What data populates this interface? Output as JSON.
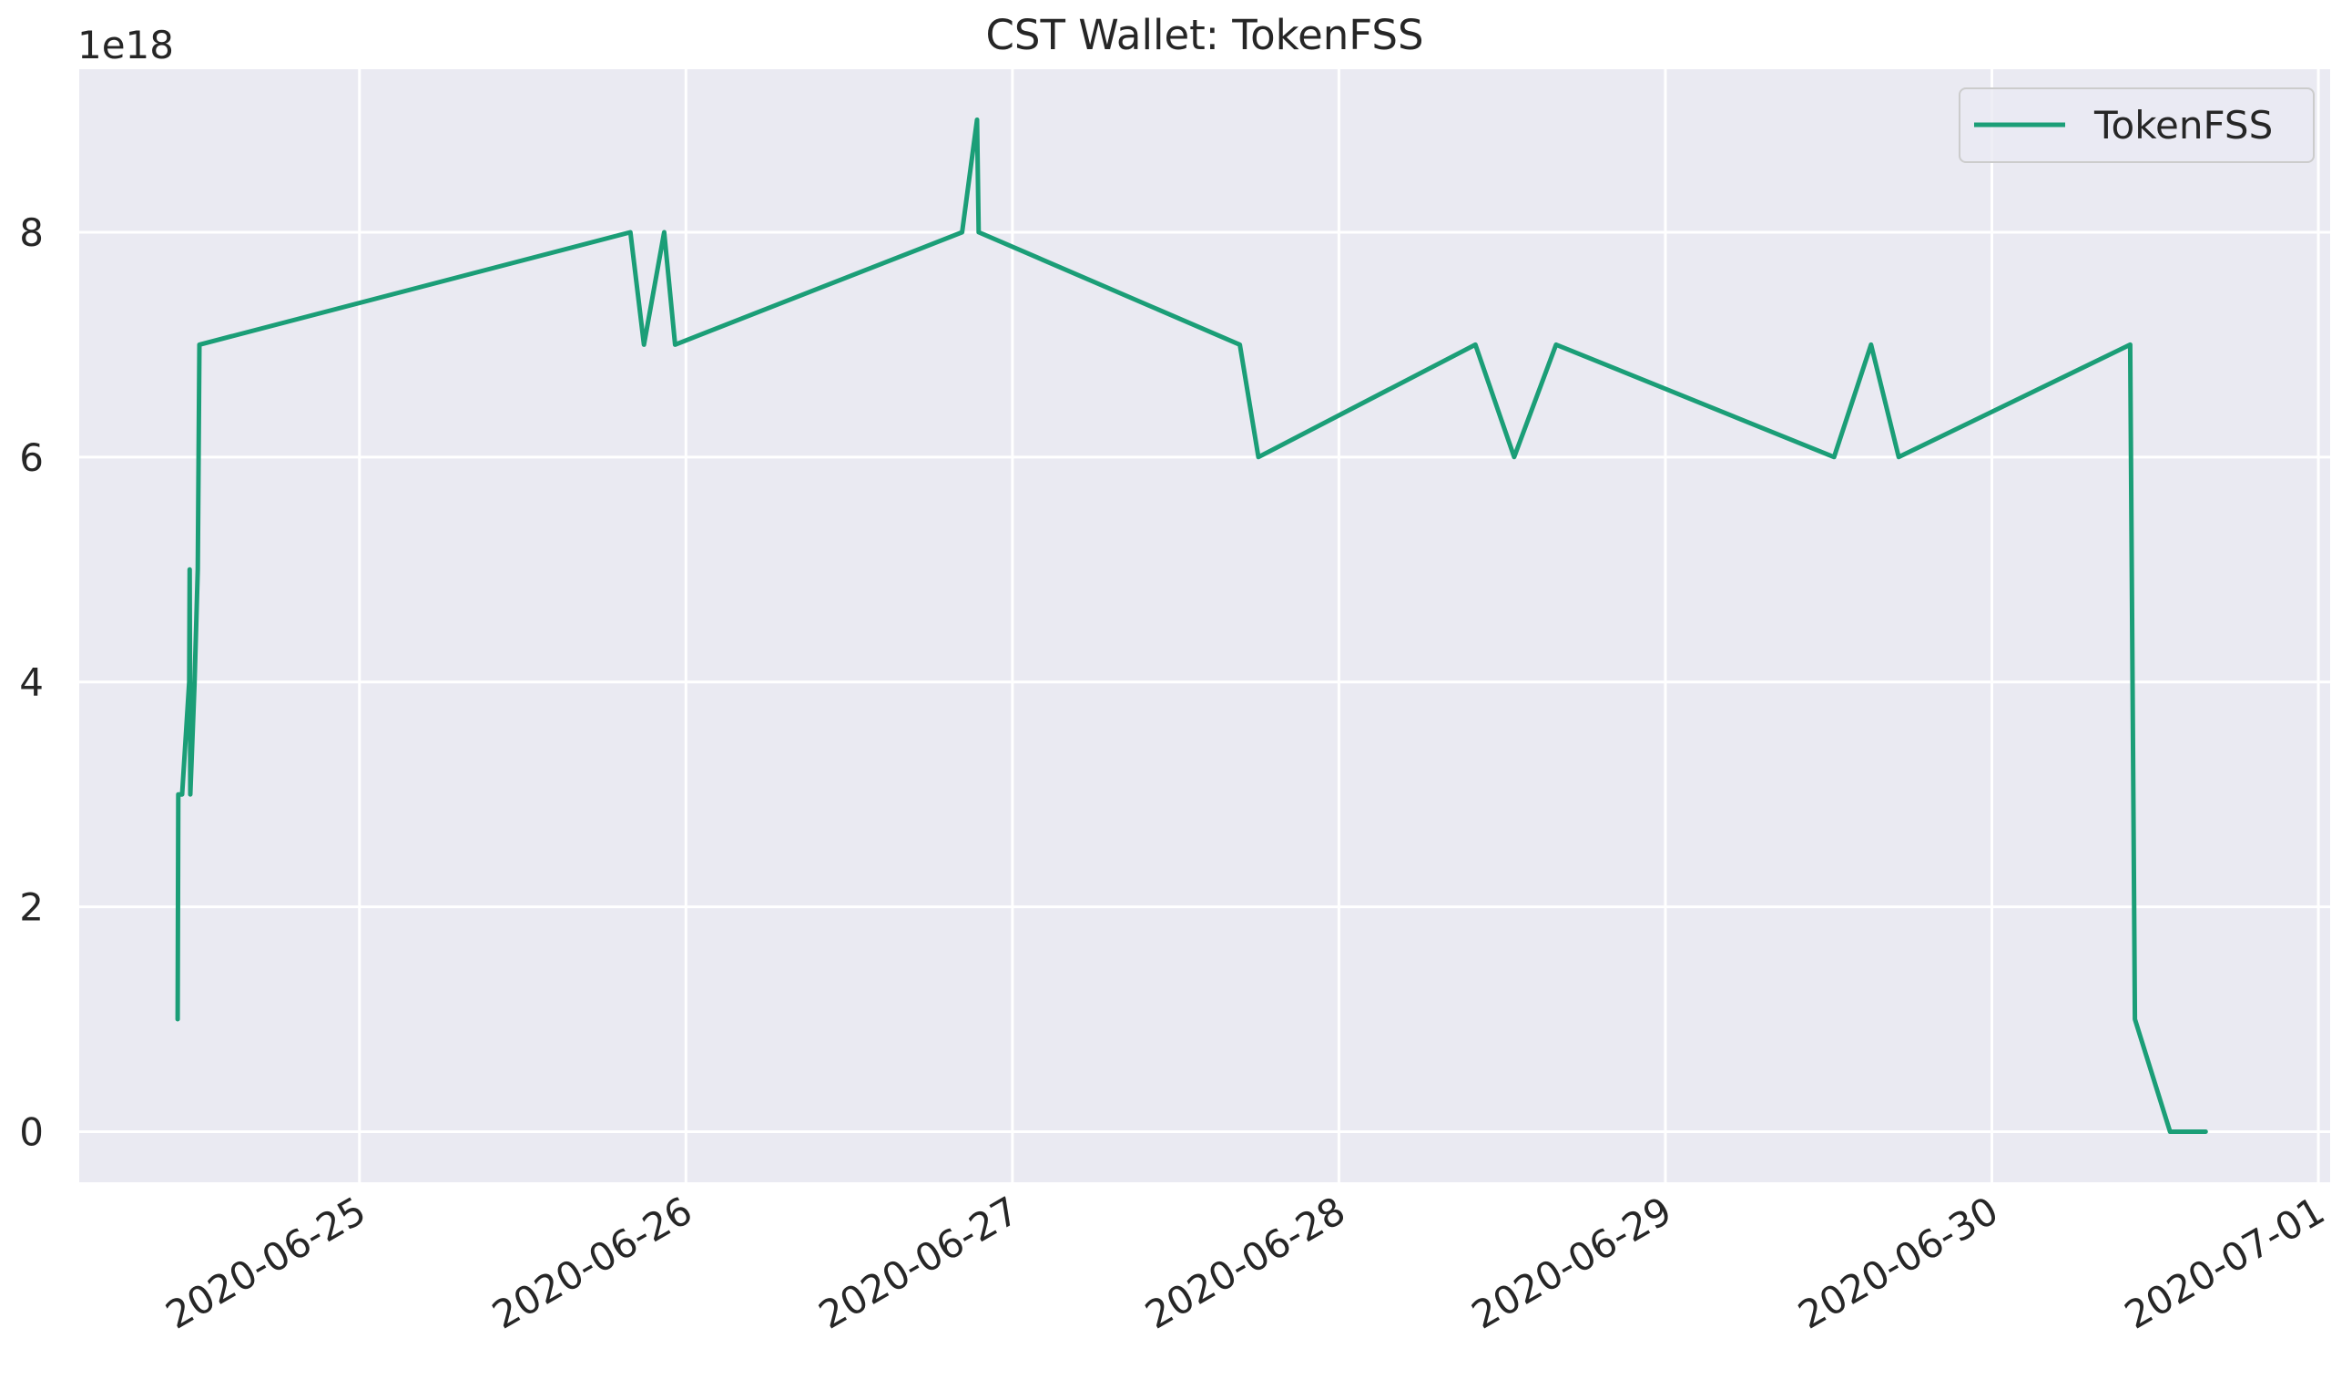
{
  "chart_data": {
    "type": "line",
    "title": "CST Wallet: TokenFSS",
    "xlabel": "",
    "ylabel": "",
    "y_offset_label": "1e18",
    "x_tick_labels": [
      "2020-06-25",
      "2020-06-26",
      "2020-06-27",
      "2020-06-28",
      "2020-06-29",
      "2020-06-30",
      "2020-07-01"
    ],
    "y_tick_labels": [
      "0",
      "2",
      "4",
      "6",
      "8"
    ],
    "y_ticks": [
      0,
      2,
      4,
      6,
      8
    ],
    "xlim": [
      "2020-06-24 03:24",
      "2020-07-01 00:52"
    ],
    "ylim": [
      -0.45,
      9.45
    ],
    "grid": true,
    "background": "#eaeaf2",
    "legend": {
      "position": "top-right"
    },
    "series": [
      {
        "name": "TokenFSS",
        "color": "#1b9e77",
        "points": [
          [
            "2020-06-24 10:38",
            1
          ],
          [
            "2020-06-24 10:41",
            3
          ],
          [
            "2020-06-24 10:58",
            3
          ],
          [
            "2020-06-24 11:29",
            4
          ],
          [
            "2020-06-24 11:31",
            5
          ],
          [
            "2020-06-24 11:34",
            3
          ],
          [
            "2020-06-24 11:53",
            4
          ],
          [
            "2020-06-24 12:07",
            5
          ],
          [
            "2020-06-24 12:14",
            7
          ],
          [
            "2020-06-25 19:55",
            8
          ],
          [
            "2020-06-25 20:55",
            7
          ],
          [
            "2020-06-25 22:24",
            8
          ],
          [
            "2020-06-25 23:12",
            7
          ],
          [
            "2020-06-26 20:18",
            8
          ],
          [
            "2020-06-26 21:24",
            9
          ],
          [
            "2020-06-26 21:31",
            8
          ],
          [
            "2020-06-27 16:43",
            7
          ],
          [
            "2020-06-27 18:05",
            6
          ],
          [
            "2020-06-28 10:02",
            7
          ],
          [
            "2020-06-28 12:53",
            6
          ],
          [
            "2020-06-28 15:58",
            7
          ],
          [
            "2020-06-29 12:24",
            6
          ],
          [
            "2020-06-29 15:07",
            7
          ],
          [
            "2020-06-29 17:09",
            6
          ],
          [
            "2020-06-30 10:10",
            7
          ],
          [
            "2020-06-30 10:31",
            1
          ],
          [
            "2020-06-30 13:06",
            0
          ],
          [
            "2020-06-30 15:43",
            0
          ]
        ]
      }
    ]
  }
}
